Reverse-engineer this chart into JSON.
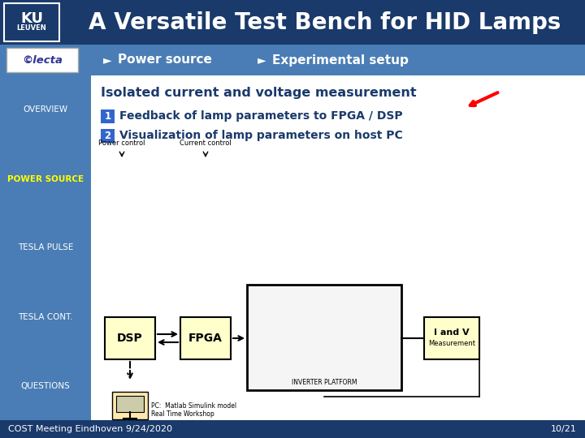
{
  "title": "A Versatile Test Bench for HID Lamps",
  "header_bg": "#1a3a6b",
  "header_text_color": "#ffffff",
  "nav_bg": "#4a7db5",
  "nav_items": [
    "OVERVIEW",
    "POWER SOURCE",
    "TESLA PULSE",
    "TESLA CONT.",
    "QUESTIONS"
  ],
  "nav_active": "POWER SOURCE",
  "nav_active_color": "#ffff00",
  "nav_inactive_color": "#ffffff",
  "content_bg": "#ffffff",
  "footer_bg": "#1a3a6b",
  "footer_text": "COST Meeting Eindhoven 9/24/2020",
  "footer_page": "10/21",
  "footer_text_color": "#ffffff",
  "subtitle_bg": "#4a7db5",
  "main_title": "Isolated current and voltage measurement",
  "point1": "Feedback of lamp parameters to FPGA / DSP",
  "point2": "Visualization of lamp parameters on host PC",
  "box_fill": "#ffffcc",
  "inverter_fill": "#f5f5f5",
  "num_box_color": "#3366cc",
  "text_dark": "#1a3a6b",
  "pc_text1": "PC:  Matlab Simulink model",
  "pc_text2": "Real Time Workshop"
}
